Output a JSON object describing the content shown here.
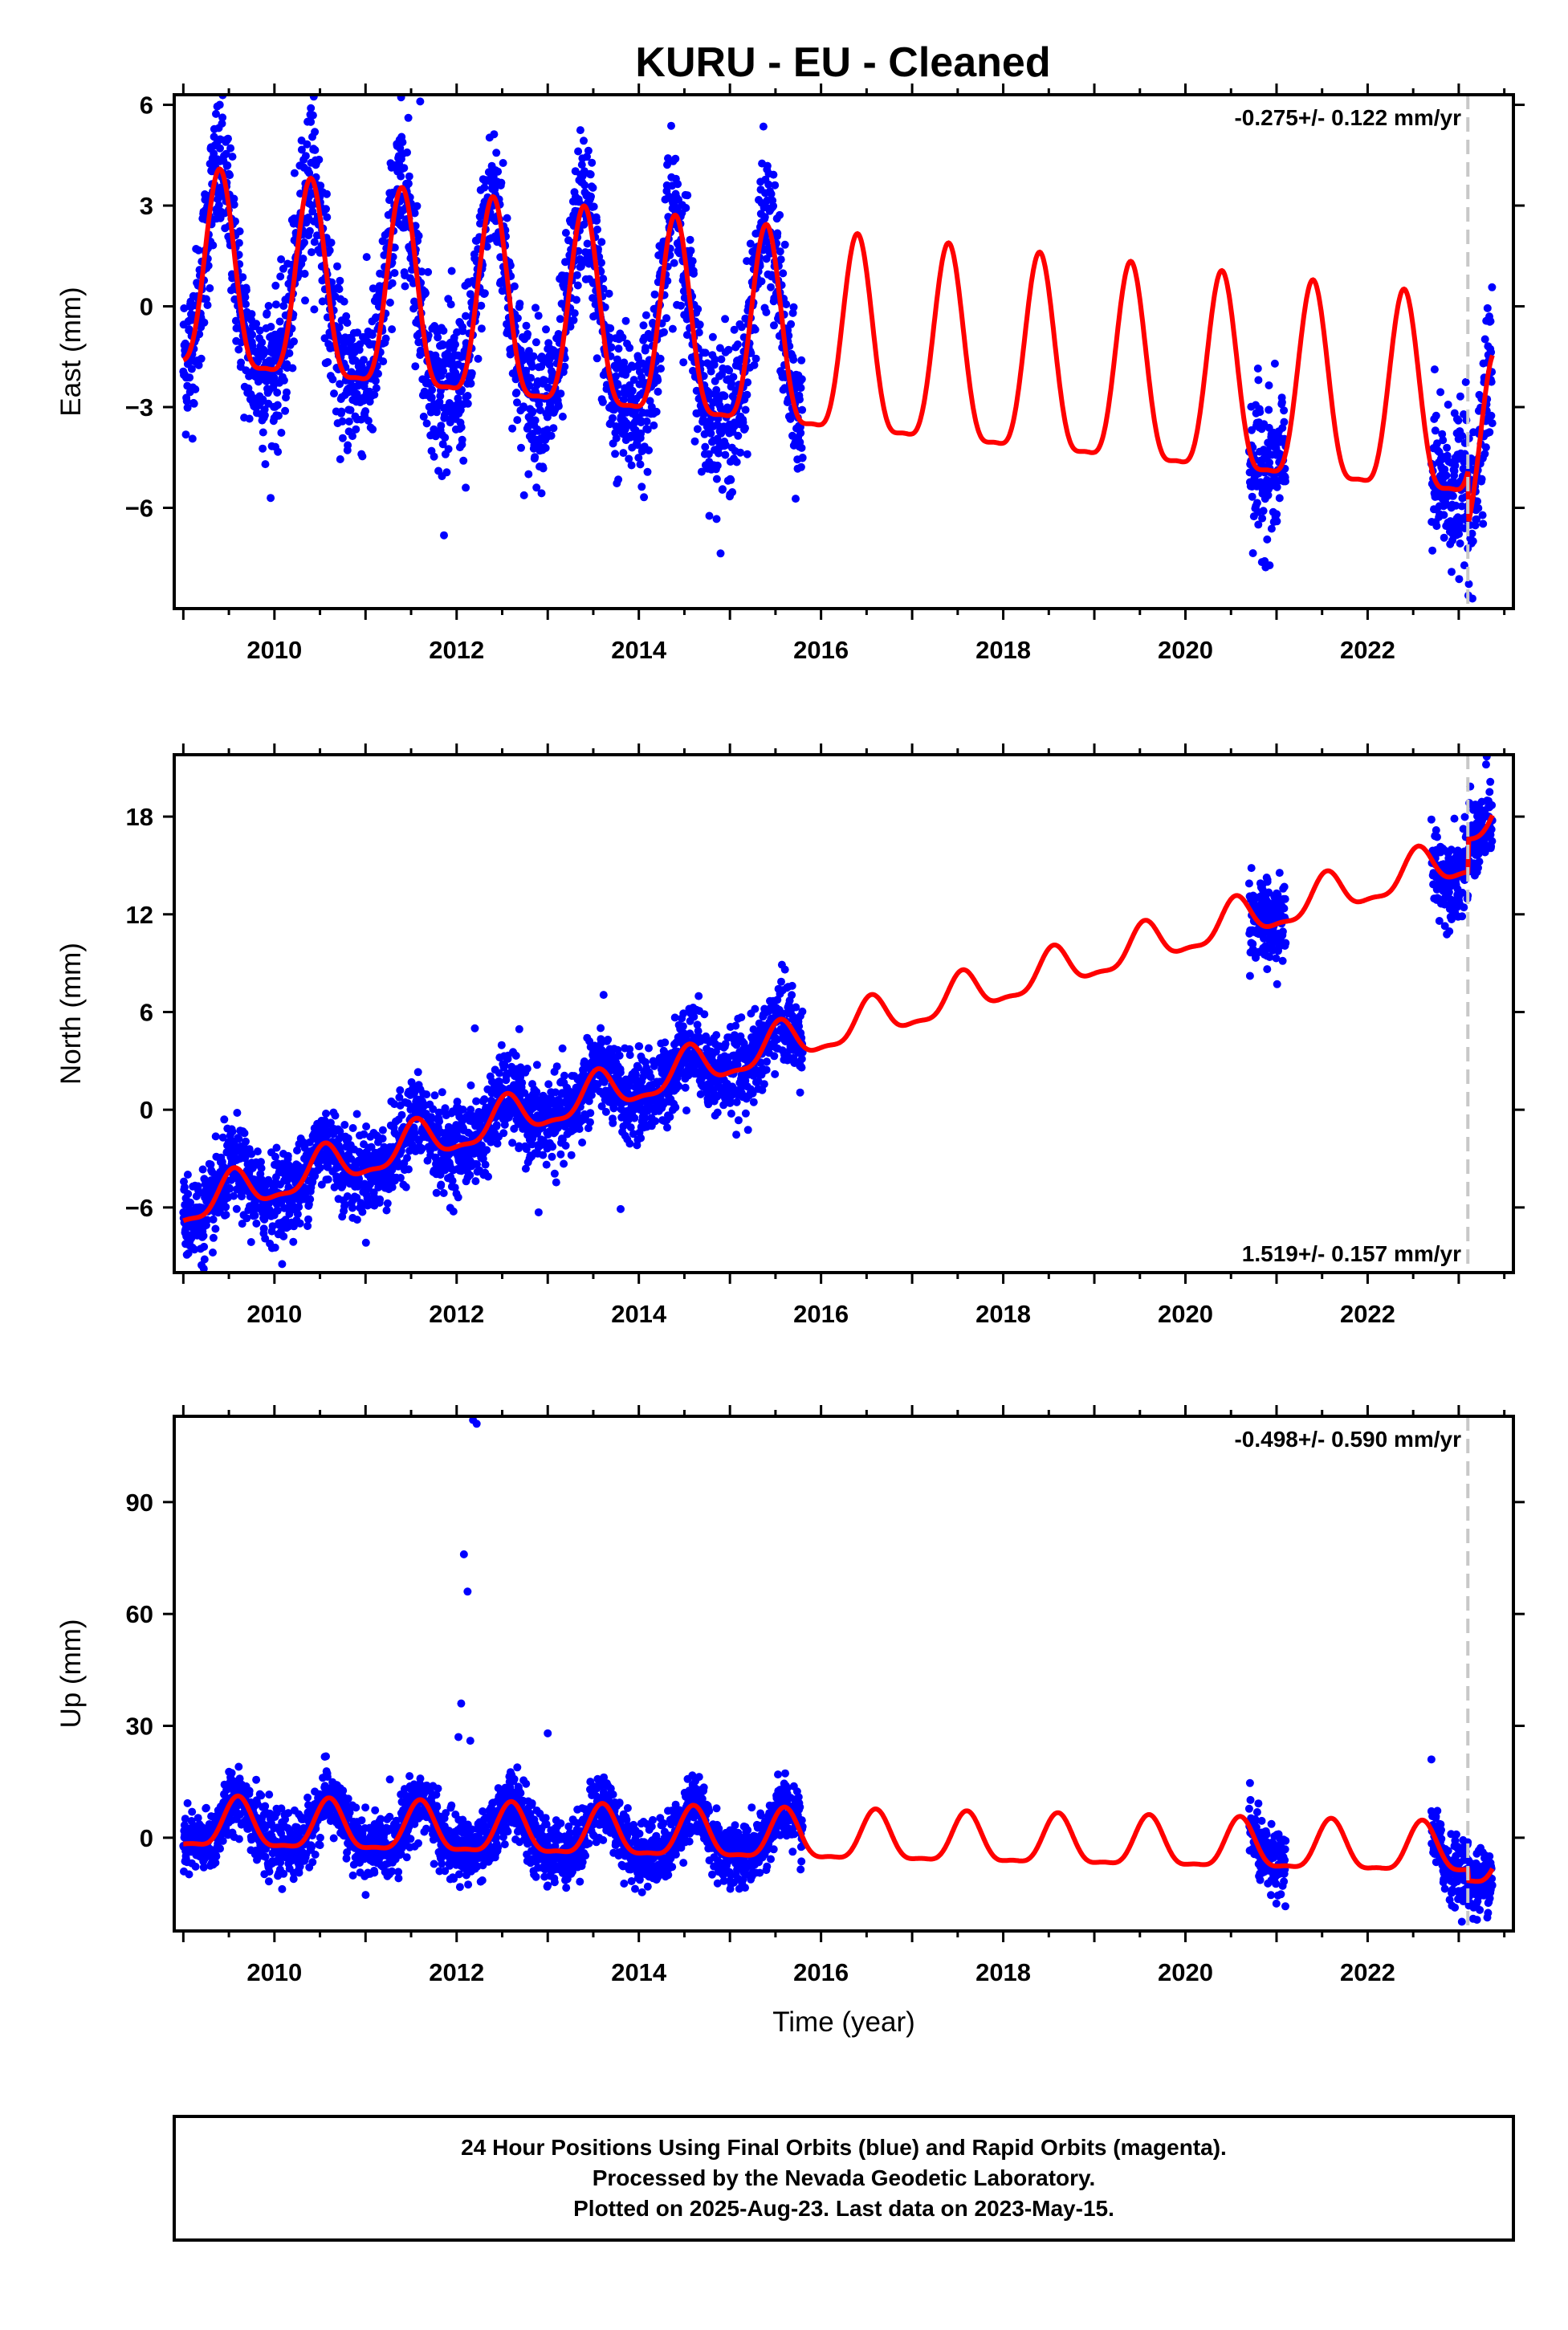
{
  "figure": {
    "title": "KURU  - EU - Cleaned",
    "xlabel": "Time (year)",
    "footer": [
      "24 Hour Positions Using Final Orbits (blue) and Rapid Orbits (magenta).",
      "Processed by the Nevada Geodetic Laboratory.",
      "Plotted on 2025-Aug-23. Last data on 2023-May-15."
    ],
    "colors": {
      "data": "#0000ff",
      "model": "#ff0000",
      "marker": "#c8c8c8",
      "frame": "#000000"
    }
  },
  "chart_data": [
    {
      "type": "scatter",
      "ylabel": "East (mm)",
      "rate": "-0.275+/- 0.122 mm/yr",
      "rate_position": "top-right",
      "xlim": [
        2008.9,
        2023.6
      ],
      "ylim": [
        -9,
        6.3
      ],
      "xticks": [
        2010,
        2012,
        2014,
        2016,
        2018,
        2020,
        2022
      ],
      "yticks": [
        -6,
        -3,
        0,
        3,
        6
      ],
      "ytick_labels": [
        "−6",
        "−3",
        "0",
        "3",
        "6"
      ],
      "marker_line_x": 2023.1,
      "data_segments": [
        [
          2009.0,
          2015.8
        ],
        [
          2020.7,
          2021.1
        ],
        [
          2022.7,
          2023.37
        ]
      ],
      "model": {
        "offset": 0.5,
        "trend": -0.275,
        "t0": 2009.0,
        "annual_amp": 2.9,
        "annual_phase": 2009.4,
        "semi_amp": 0.8,
        "step_at": 2023.1,
        "step": -1.6
      },
      "scatter_sigma": 1.1,
      "outliers": [
        {
          "x": 2009.4,
          "y": 6.0
        },
        {
          "x": 2011.6,
          "y": 6.1
        },
        {
          "x": 2010.4,
          "y": 5.9
        },
        {
          "x": 2009.9,
          "y": -4.7
        },
        {
          "x": 2011.8,
          "y": -4.9
        },
        {
          "x": 2012.1,
          "y": -5.4
        },
        {
          "x": 2020.8,
          "y": -6.5
        },
        {
          "x": 2023.15,
          "y": -8.7
        }
      ]
    },
    {
      "type": "scatter",
      "ylabel": "North (mm)",
      "rate": "1.519+/- 0.157 mm/yr",
      "rate_position": "bottom-right",
      "xlim": [
        2008.9,
        2023.6
      ],
      "ylim": [
        -10,
        21.8
      ],
      "xticks": [
        2010,
        2012,
        2014,
        2016,
        2018,
        2020,
        2022
      ],
      "yticks": [
        -6,
        0,
        6,
        12,
        18
      ],
      "ytick_labels": [
        "−6",
        "0",
        "6",
        "12",
        "18"
      ],
      "marker_line_x": 2023.1,
      "data_segments": [
        [
          2009.0,
          2015.8
        ],
        [
          2020.7,
          2021.1
        ],
        [
          2022.7,
          2023.37
        ]
      ],
      "model": {
        "offset": -6.0,
        "trend": 1.519,
        "t0": 2009.0,
        "annual_amp": 1.2,
        "annual_phase": 2009.55,
        "semi_amp": 0.4,
        "step_at": 2023.1,
        "step": 2.0
      },
      "scatter_sigma": 1.3,
      "outliers": [
        {
          "x": 2012.2,
          "y": 5.0
        },
        {
          "x": 2013.8,
          "y": -6.1
        },
        {
          "x": 2012.9,
          "y": -6.3
        },
        {
          "x": 2023.3,
          "y": 21.2
        },
        {
          "x": 2020.9,
          "y": 14.0
        }
      ]
    },
    {
      "type": "scatter",
      "ylabel": "Up (mm)",
      "rate": "-0.498+/- 0.590 mm/yr",
      "rate_position": "top-right",
      "xlim": [
        2008.9,
        2023.6
      ],
      "ylim": [
        -25,
        113
      ],
      "xticks": [
        2010,
        2012,
        2014,
        2016,
        2018,
        2020,
        2022
      ],
      "yticks": [
        0,
        30,
        60,
        90
      ],
      "ytick_labels": [
        "0",
        "30",
        "60",
        "90"
      ],
      "marker_line_x": 2023.1,
      "data_segments": [
        [
          2009.0,
          2015.8
        ],
        [
          2020.7,
          2021.1
        ],
        [
          2022.7,
          2023.37
        ]
      ],
      "model": {
        "offset": 3.0,
        "trend": -0.498,
        "t0": 2009.0,
        "annual_amp": 6.5,
        "annual_phase": 2009.6,
        "semi_amp": 2.0,
        "step_at": 2023.1,
        "step": -3.0
      },
      "scatter_sigma": 4.2,
      "outliers": [
        {
          "x": 2012.18,
          "y": 112
        },
        {
          "x": 2012.22,
          "y": 111
        },
        {
          "x": 2012.08,
          "y": 76
        },
        {
          "x": 2012.12,
          "y": 66
        },
        {
          "x": 2012.05,
          "y": 36
        },
        {
          "x": 2012.02,
          "y": 27
        },
        {
          "x": 2012.15,
          "y": 26
        },
        {
          "x": 2013.0,
          "y": 28
        },
        {
          "x": 2022.7,
          "y": 21
        },
        {
          "x": 2023.2,
          "y": -22
        }
      ]
    }
  ]
}
